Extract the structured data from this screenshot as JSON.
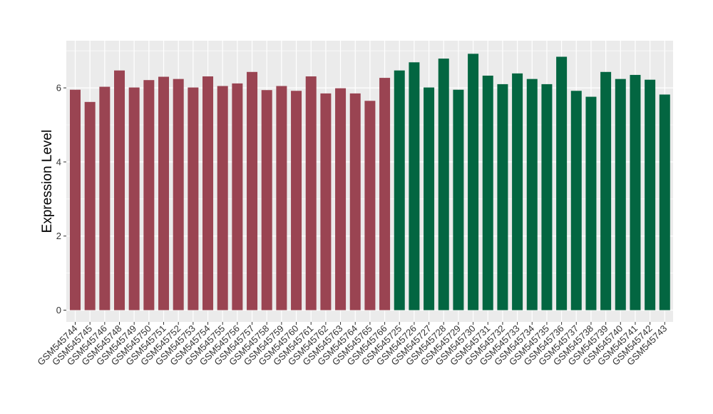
{
  "chart_data": {
    "type": "bar",
    "title": "",
    "xlabel": "",
    "ylabel": "Expression Level",
    "ylim": [
      0,
      7.2
    ],
    "yticks": [
      0,
      2,
      4,
      6
    ],
    "grid": true,
    "legend": "none",
    "colors": {
      "group1": "#9a4452",
      "group2": "#036641",
      "panel": "#ebebeb",
      "grid": "#ffffff"
    },
    "categories": [
      "GSM545744",
      "GSM545745",
      "GSM545746",
      "GSM545748",
      "GSM545749",
      "GSM545750",
      "GSM545751",
      "GSM545752",
      "GSM545753",
      "GSM545754",
      "GSM545755",
      "GSM545756",
      "GSM545757",
      "GSM545758",
      "GSM545759",
      "GSM545760",
      "GSM545761",
      "GSM545762",
      "GSM545763",
      "GSM545764",
      "GSM545765",
      "GSM545766",
      "GSM545725",
      "GSM545726",
      "GSM545727",
      "GSM545728",
      "GSM545729",
      "GSM545730",
      "GSM545731",
      "GSM545732",
      "GSM545733",
      "GSM545734",
      "GSM545735",
      "GSM545736",
      "GSM545737",
      "GSM545738",
      "GSM545739",
      "GSM545740",
      "GSM545741",
      "GSM545742",
      "GSM545743"
    ],
    "values": [
      5.95,
      5.62,
      6.03,
      6.47,
      6.01,
      6.21,
      6.3,
      6.24,
      6.01,
      6.31,
      6.05,
      6.12,
      6.43,
      5.94,
      6.05,
      5.92,
      6.31,
      5.85,
      5.99,
      5.85,
      5.65,
      6.27,
      6.47,
      6.69,
      6.01,
      6.79,
      5.95,
      6.92,
      6.33,
      6.1,
      6.39,
      6.24,
      6.1,
      6.84,
      5.92,
      5.76,
      6.43,
      6.24,
      6.35,
      6.22,
      5.82
    ],
    "groups": [
      1,
      1,
      1,
      1,
      1,
      1,
      1,
      1,
      1,
      1,
      1,
      1,
      1,
      1,
      1,
      1,
      1,
      1,
      1,
      1,
      1,
      1,
      2,
      2,
      2,
      2,
      2,
      2,
      2,
      2,
      2,
      2,
      2,
      2,
      2,
      2,
      2,
      2,
      2,
      2,
      2
    ]
  }
}
